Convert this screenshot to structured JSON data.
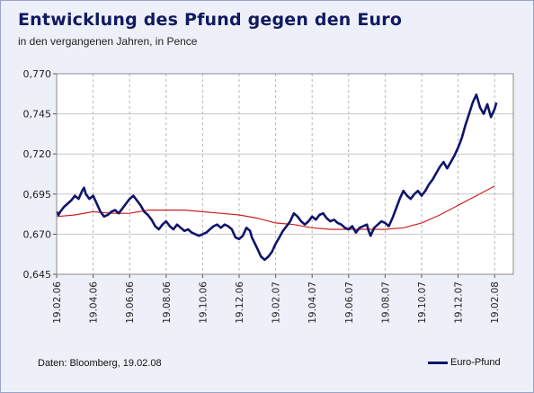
{
  "title": "Entwicklung des Pfund gegen den Euro",
  "subtitle": "in den vergangenen Jahren, in Pence",
  "source": "Daten: Bloomberg, 19.02.08",
  "colors": {
    "pound": "#10146a",
    "trend": "#cc2020",
    "plot_bg": "#ffffff",
    "grid": "#c8c8c8",
    "frame_bg": "#eef0f9"
  },
  "chart_data": {
    "type": "line",
    "ylim": [
      0.645,
      0.77
    ],
    "yticks": [
      "0,645",
      "0,670",
      "0,695",
      "0,720",
      "0,745",
      "0,770"
    ],
    "ytick_values": [
      0.645,
      0.67,
      0.695,
      0.72,
      0.745,
      0.77
    ],
    "xticks": [
      "19.02.06",
      "19.04.06",
      "19.06.06",
      "19.08.06",
      "19.10.06",
      "19.12.06",
      "19.02.07",
      "19.04.07",
      "19.06.07",
      "19.08.07",
      "19.10.07",
      "19.12.07",
      "19.02.08"
    ],
    "grid": "both",
    "legend_position": "bottom-right",
    "series": [
      {
        "name": "Euro-Pfund",
        "points": [
          [
            0.0,
            0.684
          ],
          [
            0.05,
            0.682
          ],
          [
            0.1,
            0.684
          ],
          [
            0.2,
            0.687
          ],
          [
            0.3,
            0.689
          ],
          [
            0.4,
            0.691
          ],
          [
            0.5,
            0.694
          ],
          [
            0.6,
            0.692
          ],
          [
            0.7,
            0.697
          ],
          [
            0.75,
            0.699
          ],
          [
            0.8,
            0.695
          ],
          [
            0.9,
            0.692
          ],
          [
            1.0,
            0.694
          ],
          [
            1.1,
            0.689
          ],
          [
            1.2,
            0.684
          ],
          [
            1.3,
            0.681
          ],
          [
            1.4,
            0.682
          ],
          [
            1.5,
            0.684
          ],
          [
            1.6,
            0.685
          ],
          [
            1.7,
            0.683
          ],
          [
            1.8,
            0.686
          ],
          [
            1.9,
            0.689
          ],
          [
            2.0,
            0.692
          ],
          [
            2.1,
            0.694
          ],
          [
            2.2,
            0.691
          ],
          [
            2.3,
            0.688
          ],
          [
            2.4,
            0.684
          ],
          [
            2.5,
            0.682
          ],
          [
            2.6,
            0.679
          ],
          [
            2.7,
            0.675
          ],
          [
            2.8,
            0.673
          ],
          [
            2.9,
            0.676
          ],
          [
            3.0,
            0.678
          ],
          [
            3.1,
            0.675
          ],
          [
            3.2,
            0.673
          ],
          [
            3.3,
            0.676
          ],
          [
            3.4,
            0.674
          ],
          [
            3.5,
            0.672
          ],
          [
            3.6,
            0.673
          ],
          [
            3.7,
            0.671
          ],
          [
            3.8,
            0.67
          ],
          [
            3.9,
            0.669
          ],
          [
            4.0,
            0.67
          ],
          [
            4.1,
            0.671
          ],
          [
            4.2,
            0.673
          ],
          [
            4.3,
            0.675
          ],
          [
            4.4,
            0.676
          ],
          [
            4.5,
            0.674
          ],
          [
            4.6,
            0.676
          ],
          [
            4.7,
            0.675
          ],
          [
            4.8,
            0.673
          ],
          [
            4.9,
            0.668
          ],
          [
            5.0,
            0.667
          ],
          [
            5.1,
            0.669
          ],
          [
            5.2,
            0.674
          ],
          [
            5.3,
            0.672
          ],
          [
            5.35,
            0.668
          ],
          [
            5.5,
            0.661
          ],
          [
            5.6,
            0.656
          ],
          [
            5.7,
            0.654
          ],
          [
            5.8,
            0.656
          ],
          [
            5.9,
            0.659
          ],
          [
            6.0,
            0.664
          ],
          [
            6.1,
            0.668
          ],
          [
            6.2,
            0.672
          ],
          [
            6.3,
            0.675
          ],
          [
            6.4,
            0.678
          ],
          [
            6.5,
            0.683
          ],
          [
            6.6,
            0.681
          ],
          [
            6.7,
            0.678
          ],
          [
            6.8,
            0.676
          ],
          [
            6.9,
            0.678
          ],
          [
            7.0,
            0.681
          ],
          [
            7.1,
            0.679
          ],
          [
            7.2,
            0.682
          ],
          [
            7.3,
            0.683
          ],
          [
            7.4,
            0.68
          ],
          [
            7.5,
            0.678
          ],
          [
            7.6,
            0.679
          ],
          [
            7.7,
            0.677
          ],
          [
            7.8,
            0.676
          ],
          [
            7.9,
            0.674
          ],
          [
            8.0,
            0.673
          ],
          [
            8.1,
            0.675
          ],
          [
            8.2,
            0.671
          ],
          [
            8.3,
            0.674
          ],
          [
            8.4,
            0.675
          ],
          [
            8.5,
            0.676
          ],
          [
            8.55,
            0.672
          ],
          [
            8.6,
            0.669
          ],
          [
            8.7,
            0.674
          ],
          [
            8.8,
            0.676
          ],
          [
            8.9,
            0.678
          ],
          [
            9.0,
            0.677
          ],
          [
            9.1,
            0.675
          ],
          [
            9.2,
            0.68
          ],
          [
            9.3,
            0.686
          ],
          [
            9.4,
            0.692
          ],
          [
            9.5,
            0.697
          ],
          [
            9.6,
            0.694
          ],
          [
            9.7,
            0.692
          ],
          [
            9.8,
            0.695
          ],
          [
            9.9,
            0.697
          ],
          [
            10.0,
            0.694
          ],
          [
            10.1,
            0.697
          ],
          [
            10.2,
            0.701
          ],
          [
            10.3,
            0.704
          ],
          [
            10.4,
            0.708
          ],
          [
            10.5,
            0.712
          ],
          [
            10.6,
            0.715
          ],
          [
            10.7,
            0.711
          ],
          [
            10.8,
            0.715
          ],
          [
            10.9,
            0.719
          ],
          [
            11.0,
            0.724
          ],
          [
            11.1,
            0.73
          ],
          [
            11.2,
            0.738
          ],
          [
            11.3,
            0.745
          ],
          [
            11.4,
            0.752
          ],
          [
            11.5,
            0.757
          ],
          [
            11.6,
            0.749
          ],
          [
            11.7,
            0.745
          ],
          [
            11.8,
            0.751
          ],
          [
            11.9,
            0.743
          ],
          [
            12.0,
            0.748
          ],
          [
            12.05,
            0.752
          ]
        ]
      },
      {
        "name": "",
        "points": [
          [
            0.0,
            0.681
          ],
          [
            0.5,
            0.682
          ],
          [
            1.0,
            0.684
          ],
          [
            1.5,
            0.683
          ],
          [
            2.0,
            0.683
          ],
          [
            2.5,
            0.685
          ],
          [
            3.0,
            0.685
          ],
          [
            3.5,
            0.685
          ],
          [
            4.0,
            0.684
          ],
          [
            4.5,
            0.683
          ],
          [
            5.0,
            0.682
          ],
          [
            5.5,
            0.68
          ],
          [
            6.0,
            0.677
          ],
          [
            6.5,
            0.676
          ],
          [
            7.0,
            0.674
          ],
          [
            7.5,
            0.673
          ],
          [
            8.0,
            0.673
          ],
          [
            8.5,
            0.673
          ],
          [
            9.0,
            0.673
          ],
          [
            9.5,
            0.674
          ],
          [
            10.0,
            0.677
          ],
          [
            10.5,
            0.682
          ],
          [
            11.0,
            0.688
          ],
          [
            11.5,
            0.694
          ],
          [
            12.0,
            0.7
          ]
        ]
      }
    ]
  },
  "legend": {
    "label": "Euro-Pfund"
  }
}
